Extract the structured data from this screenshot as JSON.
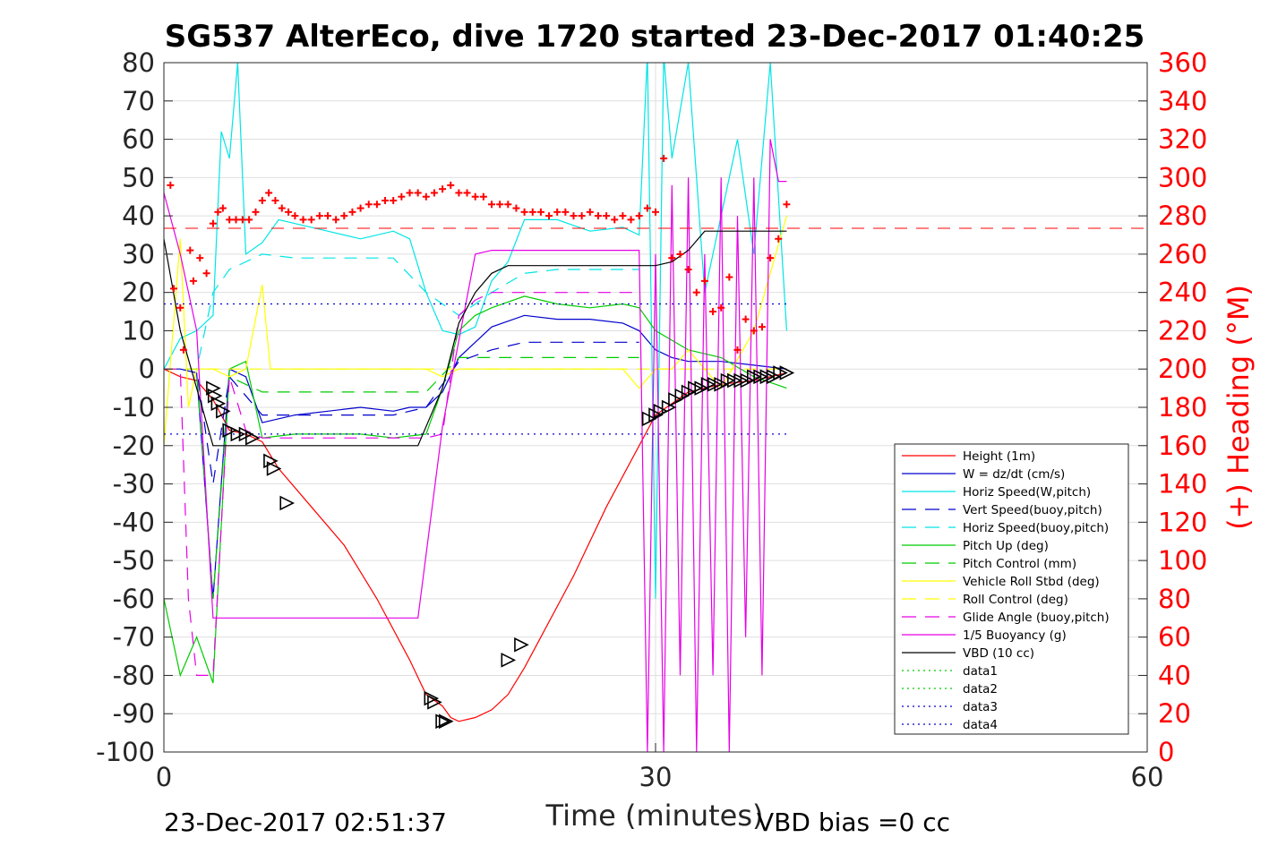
{
  "chart_data": {
    "type": "line",
    "title": "SG537 AlterEco, dive 1720 started 23-Dec-2017 01:40:25",
    "xlabel": "Time (minutes)",
    "ylabel_right": "(+) Heading (°M)",
    "xlim": [
      0,
      60
    ],
    "ylim": [
      -100,
      80
    ],
    "ylim_right": [
      0,
      360
    ],
    "x_ticks": [
      0,
      30,
      60
    ],
    "y_ticks": [
      80,
      70,
      60,
      50,
      40,
      30,
      20,
      10,
      0,
      -10,
      -20,
      -30,
      -40,
      -50,
      -60,
      -70,
      -80,
      -90,
      -100
    ],
    "y_ticks_right": [
      360,
      340,
      320,
      300,
      280,
      260,
      240,
      220,
      200,
      180,
      160,
      140,
      120,
      100,
      80,
      60,
      40,
      20,
      0
    ],
    "grid": true,
    "legend_position": "bottom-right",
    "footer_left": "23-Dec-2017 02:51:37",
    "footer_right": "VBD bias =0 cc",
    "series": [
      {
        "name": "Height (1m)",
        "color": "#ff0000",
        "style": "solid",
        "x": [
          0,
          1,
          2,
          3,
          4,
          5,
          6,
          7,
          9,
          11,
          13,
          15,
          16,
          17,
          17.5,
          18,
          19,
          20,
          21,
          22,
          23,
          25,
          27,
          29,
          30,
          31,
          32,
          33,
          34,
          35,
          36,
          37,
          38
        ],
        "y": [
          0,
          -2,
          -3,
          -8,
          -16,
          -17,
          -19,
          -26,
          -36,
          -46,
          -60,
          -76,
          -85,
          -88,
          -91,
          -92,
          -91,
          -89,
          -85,
          -78,
          -70,
          -54,
          -36,
          -20,
          -12,
          -9,
          -6,
          -5,
          -4,
          -3.5,
          -3,
          -2,
          -1
        ]
      },
      {
        "name": "W = dz/dt (cm/s)",
        "color": "#0000cc",
        "style": "solid",
        "x": [
          0,
          1,
          2,
          3,
          4,
          5,
          6,
          8,
          10,
          12,
          14,
          15,
          16,
          17,
          18,
          19,
          20,
          22,
          24,
          26,
          28,
          29,
          30,
          31,
          32,
          34,
          36,
          38
        ],
        "y": [
          0,
          0,
          -1,
          -60,
          0,
          -2,
          -14,
          -12,
          -11,
          -10,
          -11,
          -10,
          -10,
          -6,
          3,
          7,
          11,
          14,
          13,
          13,
          12,
          10,
          5,
          3,
          2,
          2,
          1,
          0
        ]
      },
      {
        "name": "Horiz Speed(W,pitch)",
        "color": "#00e5e5",
        "style": "solid",
        "x": [
          0,
          1,
          2,
          3,
          3.5,
          4,
          4.5,
          5,
          6,
          7,
          8,
          10,
          12,
          14,
          15,
          16,
          17,
          18,
          19,
          20,
          21,
          22,
          24,
          26,
          28,
          29,
          29.5,
          30,
          30.5,
          31,
          32,
          33,
          34,
          35,
          36,
          37,
          38
        ],
        "y": [
          0,
          8,
          10,
          14,
          62,
          55,
          80,
          30,
          33,
          39,
          38,
          36,
          34,
          36,
          34,
          20,
          10,
          9,
          11,
          23,
          28,
          39,
          39,
          36,
          37,
          35,
          82,
          -60,
          82,
          55,
          80,
          20,
          40,
          60,
          30,
          80,
          10
        ]
      },
      {
        "name": "Vert Speed(buoy,pitch)",
        "color": "#0000cc",
        "style": "dashed",
        "x": [
          0,
          2,
          3,
          4,
          6,
          8,
          10,
          12,
          14,
          16,
          18,
          20,
          22,
          24,
          26,
          28,
          29
        ],
        "y": [
          0,
          0,
          -30,
          -2,
          -12,
          -12,
          -12,
          -12,
          -12,
          -10,
          2,
          5,
          7,
          7,
          7,
          7,
          7
        ]
      },
      {
        "name": "Horiz Speed(buoy,pitch)",
        "color": "#00e5e5",
        "style": "dashed",
        "x": [
          0,
          2,
          3,
          4,
          6,
          8,
          10,
          12,
          14,
          16,
          18,
          20,
          22,
          24,
          26,
          28,
          29
        ],
        "y": [
          0,
          0,
          20,
          26,
          30,
          29,
          29,
          29,
          29,
          20,
          14,
          20,
          25,
          26,
          26,
          26,
          26
        ]
      },
      {
        "name": "Pitch Up (deg)",
        "color": "#00cc00",
        "style": "solid",
        "x": [
          0,
          1,
          2,
          3,
          4,
          5,
          6,
          8,
          10,
          12,
          14,
          16,
          17,
          18,
          19,
          20,
          22,
          24,
          26,
          28,
          29,
          30,
          32,
          34,
          36,
          38
        ],
        "y": [
          -60,
          -80,
          -70,
          -82,
          0,
          2,
          -18,
          -17,
          -17,
          -17,
          -18,
          -17,
          -5,
          10,
          14,
          16,
          19,
          17,
          16,
          17,
          16,
          10,
          5,
          3,
          -2,
          -5
        ]
      },
      {
        "name": "Pitch Control (mm)",
        "color": "#00cc00",
        "style": "dashed",
        "x": [
          0,
          2,
          3,
          4,
          6,
          8,
          10,
          12,
          14,
          16,
          18,
          20,
          22,
          24,
          26,
          28,
          29
        ],
        "y": [
          0,
          0,
          -60,
          -2,
          -6,
          -6,
          -6,
          -6,
          -6,
          -6,
          3,
          3,
          3,
          3,
          3,
          3,
          3
        ]
      },
      {
        "name": "Vehicle Roll Stbd (deg)",
        "color": "#ffff00",
        "style": "solid",
        "x": [
          0,
          1,
          1.5,
          2,
          3,
          4,
          5,
          6,
          6.5,
          7,
          8,
          10,
          12,
          14,
          16,
          17,
          18,
          20,
          22,
          24,
          26,
          28,
          29,
          30,
          31,
          32,
          34,
          36,
          38
        ],
        "y": [
          -20,
          34,
          -10,
          0,
          0,
          -2,
          0,
          22,
          0,
          0,
          0,
          0,
          0,
          0,
          0,
          -2,
          0,
          0,
          0,
          0,
          0,
          0,
          -5,
          0,
          0,
          5,
          -5,
          10,
          40
        ]
      },
      {
        "name": "Roll Control (deg)",
        "color": "#ffff00",
        "style": "dashed",
        "x": [
          0,
          5,
          10,
          15,
          20,
          25,
          30,
          35,
          38
        ],
        "y": [
          0,
          0,
          0,
          0,
          0,
          0,
          0,
          0,
          0
        ]
      },
      {
        "name": "Glide Angle (buoy,pitch)",
        "color": "#e600e6",
        "style": "dashed",
        "x": [
          0,
          1,
          1.5,
          2,
          3,
          4,
          5,
          6,
          8,
          10,
          12,
          14,
          16,
          17,
          18,
          19,
          20,
          22,
          24,
          26,
          28,
          29
        ],
        "y": [
          0,
          0,
          -60,
          -80,
          -80,
          -2,
          -16,
          -18,
          -18,
          -18,
          -18,
          -18,
          -18,
          -17,
          14,
          18,
          20,
          20,
          20,
          20,
          20,
          20
        ]
      },
      {
        "name": "1/5 Buoyancy (g)",
        "color": "#e600e6",
        "style": "solid",
        "x": [
          0,
          1,
          2,
          3,
          4,
          6,
          8,
          10,
          12,
          14,
          15,
          15.5,
          17,
          19,
          20,
          22,
          24,
          26,
          28,
          29,
          29.5,
          30,
          30.5,
          31,
          31.5,
          32,
          32.5,
          33,
          33.5,
          34,
          34.5,
          35,
          35.5,
          36,
          36.5,
          37,
          37.5,
          38
        ],
        "y": [
          46,
          30,
          10,
          -65,
          -65,
          -65,
          -65,
          -65,
          -65,
          -65,
          -65,
          -65,
          -15,
          30,
          31,
          31,
          31,
          31,
          31,
          31,
          -100,
          30,
          -100,
          48,
          -80,
          50,
          -100,
          30,
          -80,
          50,
          -100,
          40,
          -70,
          50,
          -80,
          60,
          49,
          49
        ]
      },
      {
        "name": "VBD (10 cc)",
        "color": "#000000",
        "style": "solid",
        "x": [
          0,
          1,
          2,
          3,
          4,
          5,
          8,
          10,
          12,
          14,
          15,
          15.5,
          17,
          18,
          19,
          20,
          21,
          22,
          24,
          26,
          28,
          29,
          30,
          31,
          32,
          33,
          34,
          36,
          38
        ],
        "y": [
          34,
          10,
          -5,
          -20,
          -20,
          -20,
          -20,
          -20,
          -20,
          -20,
          -20,
          -20,
          -5,
          12,
          20,
          25,
          27,
          27,
          27,
          27,
          27,
          27,
          27,
          28,
          31,
          36,
          36,
          36,
          36
        ]
      },
      {
        "name": "data1",
        "color": "#00cc00",
        "style": "dotted",
        "x": [],
        "y": []
      },
      {
        "name": "data2",
        "color": "#00cc00",
        "style": "dotted",
        "x": [],
        "y": []
      },
      {
        "name": "data3",
        "color": "#0000cc",
        "style": "dotted",
        "x": [
          0,
          38
        ],
        "y": [
          -17,
          -17
        ]
      },
      {
        "name": "data4",
        "color": "#0000cc",
        "style": "dotted",
        "x": [
          0,
          38
        ],
        "y": [
          17,
          17
        ]
      }
    ],
    "heading_points": {
      "color": "#ff0000",
      "axis": "right",
      "x": [
        0.4,
        0.6,
        1.0,
        1.2,
        1.6,
        1.8,
        2.2,
        2.6,
        3.0,
        3.3,
        3.6,
        4.0,
        4.4,
        4.8,
        5.2,
        5.6,
        6.0,
        6.4,
        6.8,
        7.2,
        7.6,
        8.0,
        8.5,
        9.0,
        9.5,
        10.0,
        10.5,
        11.0,
        11.5,
        12.0,
        12.5,
        13.0,
        13.5,
        14.0,
        14.5,
        15.0,
        15.5,
        16.0,
        16.5,
        17.0,
        17.5,
        18.0,
        18.5,
        19.0,
        19.5,
        20.0,
        20.5,
        21.0,
        21.5,
        22.0,
        22.5,
        23.0,
        23.5,
        24.0,
        24.5,
        25.0,
        25.5,
        26.0,
        26.5,
        27.0,
        27.5,
        28.0,
        28.5,
        29.0,
        29.5,
        30.0,
        30.5,
        31.0,
        31.5,
        32.0,
        32.5,
        33.0,
        33.5,
        34.0,
        34.5,
        35.0,
        35.5,
        36.0,
        36.5,
        37.0,
        37.5,
        38.0
      ],
      "y": [
        296,
        242,
        232,
        210,
        262,
        246,
        258,
        250,
        276,
        282,
        284,
        278,
        278,
        278,
        278,
        282,
        288,
        292,
        288,
        284,
        282,
        280,
        278,
        278,
        280,
        280,
        278,
        280,
        282,
        284,
        286,
        286,
        288,
        288,
        290,
        292,
        292,
        290,
        292,
        294,
        296,
        292,
        292,
        290,
        290,
        286,
        286,
        286,
        284,
        282,
        282,
        282,
        280,
        282,
        282,
        280,
        280,
        282,
        280,
        280,
        278,
        280,
        278,
        280,
        284,
        282,
        310,
        258,
        260,
        252,
        240,
        246,
        230,
        232,
        248,
        210,
        226,
        220,
        222,
        258,
        268,
        286
      ]
    },
    "markers": {
      "color": "#000000",
      "symbol": "triangle",
      "x": [
        3.0,
        3.1,
        3.3,
        3.6,
        4.0,
        4.5,
        5.0,
        5.4,
        6.5,
        6.7,
        7.5,
        16.3,
        16.5,
        17.0,
        17.2,
        21.0,
        21.8,
        29.6,
        30.0,
        30.3,
        30.8,
        31.2,
        31.6,
        32.0,
        32.4,
        32.8,
        33.2,
        33.6,
        34.0,
        34.4,
        34.8,
        35.2,
        35.6,
        36.0,
        36.4,
        36.8,
        37.2,
        37.6,
        38.0
      ],
      "y": [
        -5,
        -7,
        -9,
        -11,
        -16,
        -17,
        -17,
        -18,
        -24,
        -26,
        -35,
        -86,
        -87,
        -92,
        -92,
        -76,
        -72,
        -13,
        -12,
        -11,
        -10,
        -8,
        -7,
        -6,
        -5,
        -5,
        -4,
        -4,
        -4,
        -3,
        -3,
        -3,
        -3,
        -2,
        -2,
        -2,
        -2,
        -1,
        -1
      ]
    }
  }
}
